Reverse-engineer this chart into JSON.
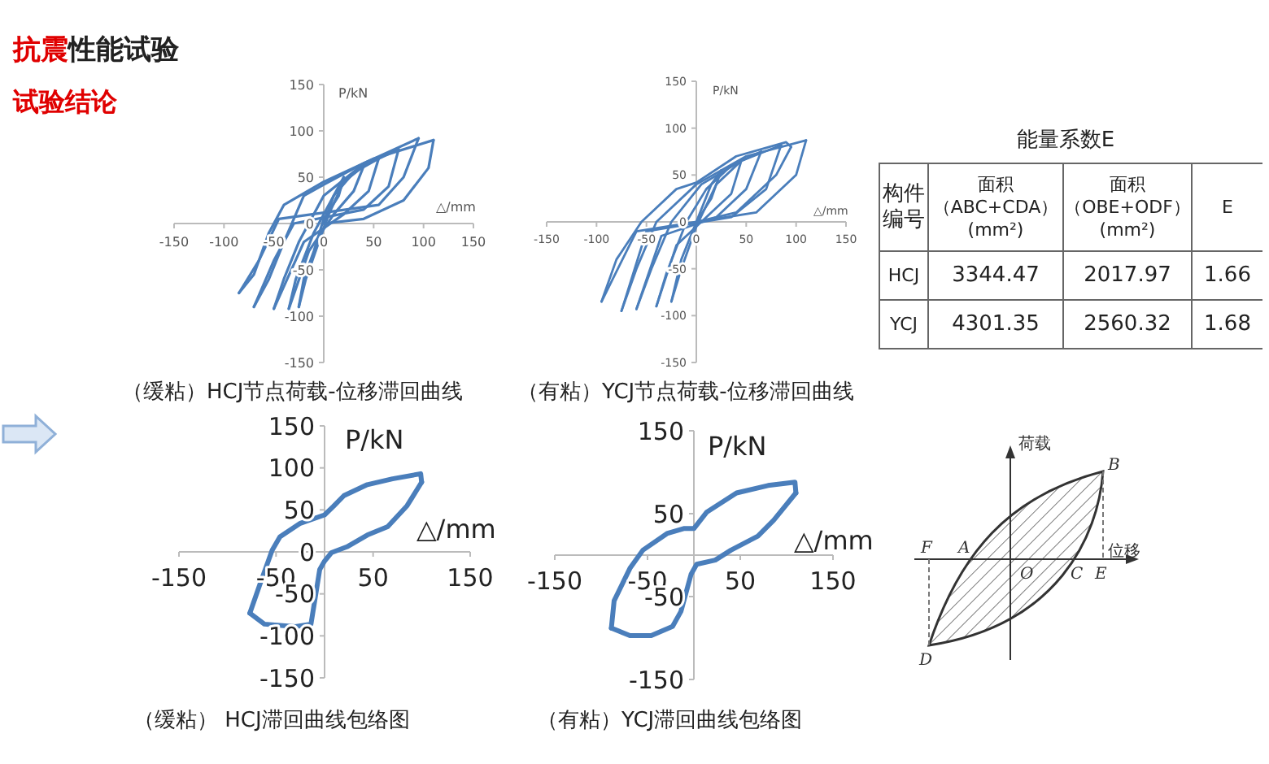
{
  "chart_data": [
    {
      "type": "line",
      "title": "抗震性能试验",
      "subtitle": "试验结论",
      "annotations": [
        "（缓粘）HCJ节点荷载-位移滞回曲线"
      ],
      "xlabel": "△/mm",
      "ylabel": "P/kN",
      "xlim": [
        -150,
        150
      ],
      "ylim": [
        -150,
        150
      ],
      "xticks": [
        -150,
        -100,
        -50,
        0,
        50,
        100,
        150
      ],
      "yticks": [
        -150,
        -100,
        -50,
        0,
        50,
        100,
        150
      ],
      "series": [
        {
          "color": "#4a7ebb",
          "x": [
            0,
            10,
            20
          ],
          "values": [
            0,
            30,
            50
          ]
        },
        {
          "color": "#4a7ebb",
          "x": [
            20,
            15,
            0,
            -10,
            -20,
            -25
          ],
          "values": [
            50,
            30,
            5,
            -30,
            -60,
            -90
          ]
        },
        {
          "color": "#4a7ebb",
          "x": [
            -25,
            -18,
            -5,
            5,
            20,
            40
          ],
          "values": [
            -90,
            -60,
            -20,
            10,
            45,
            62
          ]
        },
        {
          "color": "#4a7ebb",
          "x": [
            40,
            30,
            10,
            -15,
            -35
          ],
          "values": [
            62,
            35,
            10,
            -30,
            -92
          ]
        },
        {
          "color": "#4a7ebb",
          "x": [
            -35,
            -28,
            -10,
            10,
            30,
            55
          ],
          "values": [
            -92,
            -60,
            -10,
            30,
            55,
            70
          ]
        },
        {
          "color": "#4a7ebb",
          "x": [
            55,
            45,
            20,
            -20,
            -50
          ],
          "values": [
            70,
            35,
            10,
            -20,
            -92
          ]
        },
        {
          "color": "#4a7ebb",
          "x": [
            -50,
            -40,
            -25,
            0,
            35,
            75
          ],
          "values": [
            -92,
            -60,
            -20,
            30,
            60,
            80
          ]
        },
        {
          "color": "#4a7ebb",
          "x": [
            75,
            65,
            40,
            -30,
            -50,
            -70
          ],
          "values": [
            80,
            40,
            15,
            0,
            -40,
            -90
          ]
        },
        {
          "color": "#4a7ebb",
          "x": [
            -70,
            -55,
            -40,
            -20,
            0,
            40,
            95
          ],
          "values": [
            -90,
            -60,
            -20,
            30,
            42,
            65,
            92
          ]
        },
        {
          "color": "#4a7ebb",
          "x": [
            95,
            80,
            55,
            -45,
            -65,
            -85
          ],
          "values": [
            92,
            50,
            20,
            5,
            -40,
            -75
          ]
        },
        {
          "color": "#4a7ebb",
          "x": [
            -85,
            -70,
            -55,
            -40,
            0,
            50,
            110
          ],
          "values": [
            -75,
            -55,
            -10,
            20,
            45,
            70,
            90
          ]
        },
        {
          "color": "#4a7ebb",
          "x": [
            110,
            105,
            80,
            40,
            0
          ],
          "values": [
            90,
            60,
            25,
            5,
            0
          ]
        }
      ]
    },
    {
      "type": "line",
      "annotations": [
        "（有粘）YCJ节点荷载-位移滞回曲线"
      ],
      "xlabel": "△/mm",
      "ylabel": "P/kN",
      "xlim": [
        -150,
        150
      ],
      "ylim": [
        -150,
        150
      ],
      "xticks": [
        -150,
        -100,
        -50,
        0,
        50,
        100,
        150
      ],
      "yticks": [
        -150,
        -100,
        -50,
        0,
        50,
        100,
        150
      ],
      "series": [
        {
          "color": "#4a7ebb",
          "x": [
            0,
            15,
            25
          ],
          "values": [
            0,
            40,
            55
          ]
        },
        {
          "color": "#4a7ebb",
          "x": [
            25,
            15,
            0,
            -15,
            -25
          ],
          "values": [
            55,
            25,
            0,
            -40,
            -85
          ]
        },
        {
          "color": "#4a7ebb",
          "x": [
            -25,
            -15,
            0,
            20,
            45
          ],
          "values": [
            -85,
            -50,
            -5,
            40,
            65
          ]
        },
        {
          "color": "#4a7ebb",
          "x": [
            45,
            35,
            10,
            -20,
            -40
          ],
          "values": [
            65,
            30,
            5,
            -25,
            -90
          ]
        },
        {
          "color": "#4a7ebb",
          "x": [
            -40,
            -30,
            -10,
            10,
            35,
            65
          ],
          "values": [
            -90,
            -55,
            0,
            35,
            60,
            75
          ]
        },
        {
          "color": "#4a7ebb",
          "x": [
            65,
            50,
            20,
            -35,
            -60
          ],
          "values": [
            75,
            35,
            5,
            -15,
            -93
          ]
        },
        {
          "color": "#4a7ebb",
          "x": [
            -60,
            -45,
            -25,
            5,
            45,
            85
          ],
          "values": [
            -93,
            -50,
            0,
            40,
            65,
            82
          ]
        },
        {
          "color": "#4a7ebb",
          "x": [
            85,
            70,
            35,
            -50,
            -75
          ],
          "values": [
            82,
            35,
            5,
            -10,
            -95
          ]
        },
        {
          "color": "#4a7ebb",
          "x": [
            -75,
            -60,
            -40,
            0,
            50,
            110
          ],
          "values": [
            -95,
            -50,
            0,
            40,
            70,
            87
          ]
        },
        {
          "color": "#4a7ebb",
          "x": [
            110,
            100,
            60,
            0,
            -60,
            -95
          ],
          "values": [
            87,
            50,
            10,
            0,
            -10,
            -85
          ]
        },
        {
          "color": "#4a7ebb",
          "x": [
            -95,
            -80,
            -55,
            -20,
            0,
            40,
            90,
            95
          ],
          "values": [
            -85,
            -40,
            0,
            35,
            42,
            70,
            85,
            80
          ]
        },
        {
          "color": "#4a7ebb",
          "x": [
            95,
            80,
            40,
            0
          ],
          "values": [
            80,
            50,
            10,
            0
          ]
        }
      ]
    },
    {
      "type": "line",
      "annotations": [
        "（缓粘） HCJ滞回曲线包络图"
      ],
      "xlabel": "△/mm",
      "ylabel": "P/kN",
      "xlim": [
        -150,
        150
      ],
      "ylim": [
        -150,
        150
      ],
      "xticks": [
        -150,
        -50,
        50,
        150
      ],
      "yticks": [
        -150,
        -100,
        -50,
        0,
        50,
        100,
        150
      ],
      "series": [
        {
          "color": "#4a7ebb",
          "x": [
            -77,
            -67,
            -54,
            -46,
            -25,
            0,
            9,
            20,
            44,
            70,
            99,
            100
          ],
          "values": [
            -73,
            -40,
            2,
            18,
            34,
            44,
            54,
            67,
            80,
            87,
            93,
            83
          ]
        },
        {
          "color": "#4a7ebb",
          "x": [
            100,
            85,
            65,
            44,
            23,
            7,
            0,
            -5,
            -14,
            -30,
            -62,
            -77
          ],
          "values": [
            83,
            55,
            30,
            20,
            6,
            -1,
            -11,
            -21,
            -86,
            -89,
            -86,
            -73
          ]
        }
      ]
    },
    {
      "type": "line",
      "annotations": [
        "（有粘）YCJ滞回曲线包络图"
      ],
      "xlabel": "△/mm",
      "ylabel": "P/kN",
      "xlim": [
        -150,
        150
      ],
      "ylim": [
        -150,
        150
      ],
      "xticks": [
        -150,
        -50,
        50,
        150
      ],
      "yticks": [
        -150,
        -50,
        50,
        150
      ],
      "series": [
        {
          "color": "#4a7ebb",
          "x": [
            -89,
            -86,
            -69,
            -55,
            -29,
            -11,
            0,
            14,
            46,
            80,
            109,
            110
          ],
          "values": [
            -88,
            -55,
            -16,
            6,
            26,
            32,
            32,
            52,
            75,
            84,
            88,
            75
          ]
        },
        {
          "color": "#4a7ebb",
          "x": [
            110,
            86,
            69,
            40,
            23,
            3,
            -3,
            -14,
            -23,
            -46,
            -69,
            -89
          ],
          "values": [
            75,
            42,
            23,
            6,
            -6,
            -11,
            -23,
            -68,
            -86,
            -97,
            -97,
            -88
          ]
        }
      ]
    },
    {
      "type": "other",
      "title": "能量系数E",
      "categories": [
        "构件编号",
        "面积（ABC+CDA）(mm²)",
        "面积（OBE+ODF）(mm²)",
        "E"
      ],
      "y_categories": [
        "HCJ",
        "YCJ"
      ],
      "cell_labels": [
        [
          "3344.47",
          "2017.97",
          "1.66"
        ],
        [
          "4301.35",
          "2560.32",
          "1.68"
        ]
      ]
    },
    {
      "type": "other",
      "xlabel": "位移",
      "ylabel": "荷载",
      "annotations": [
        "A",
        "B",
        "C",
        "D",
        "E",
        "F",
        "O"
      ]
    }
  ]
}
